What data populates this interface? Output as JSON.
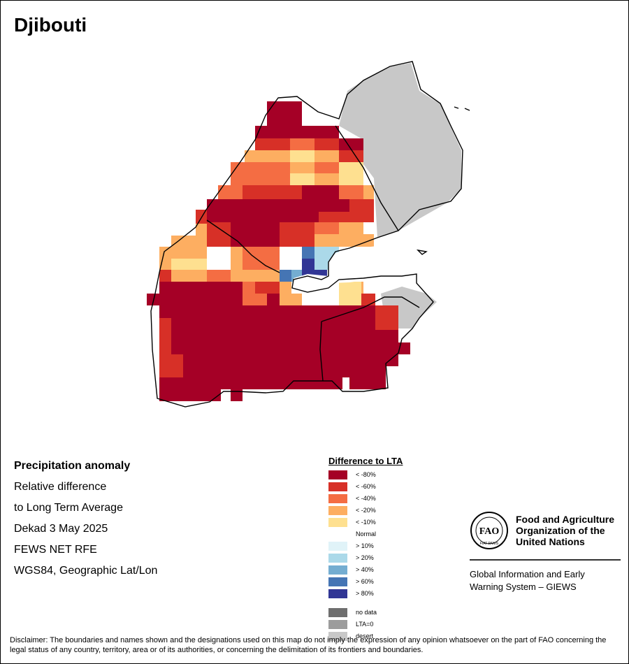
{
  "title": "Djibouti",
  "info": {
    "heading": "Precipitation anomaly",
    "line1": "Relative difference",
    "line2": "to Long Term Average",
    "line3": "Dekad 3 May 2025",
    "line4": "FEWS NET RFE",
    "line5": "WGS84, Geographic Lat/Lon"
  },
  "legend": {
    "title": "Difference to LTA",
    "items": [
      {
        "label": "< -80%",
        "color": "#a50026"
      },
      {
        "label": "< -60%",
        "color": "#d73027"
      },
      {
        "label": "< -40%",
        "color": "#f46d43"
      },
      {
        "label": "< -20%",
        "color": "#fdae61"
      },
      {
        "label": "< -10%",
        "color": "#fee090"
      },
      {
        "label": "Normal",
        "color": "#ffffff"
      },
      {
        "label": "> 10%",
        "color": "#e0f3f8"
      },
      {
        "label": "> 20%",
        "color": "#abd9e9"
      },
      {
        "label": "> 40%",
        "color": "#74add1"
      },
      {
        "label": "> 60%",
        "color": "#4575b4"
      },
      {
        "label": "> 80%",
        "color": "#313695"
      }
    ],
    "extra": [
      {
        "label": "no data",
        "color": "#6e6e6e"
      },
      {
        "label": "LTA=0",
        "color": "#9c9c9c"
      },
      {
        "label": "desert",
        "color": "#c8c8c8"
      }
    ]
  },
  "org": {
    "name_line1": "Food and Agriculture",
    "name_line2": "Organization of the",
    "name_line3": "United Nations",
    "logo_text": "FAO",
    "logo_motto": "FIAT PANIS",
    "system_line1": "Global Information and Early",
    "system_line2": "Warning System – GIEWS"
  },
  "disclaimer": "Disclaimer: The boundaries and names shown and the designations used on this map do not imply the expression of any opinion whatsoever on the part of FAO concerning the legal status of any country, territory, area or of its authorities, or concerning the delimitation of its frontiers and boundaries.",
  "colors": {
    "frame": "#000000",
    "border": "#000000",
    "sea": "#ffffff"
  }
}
